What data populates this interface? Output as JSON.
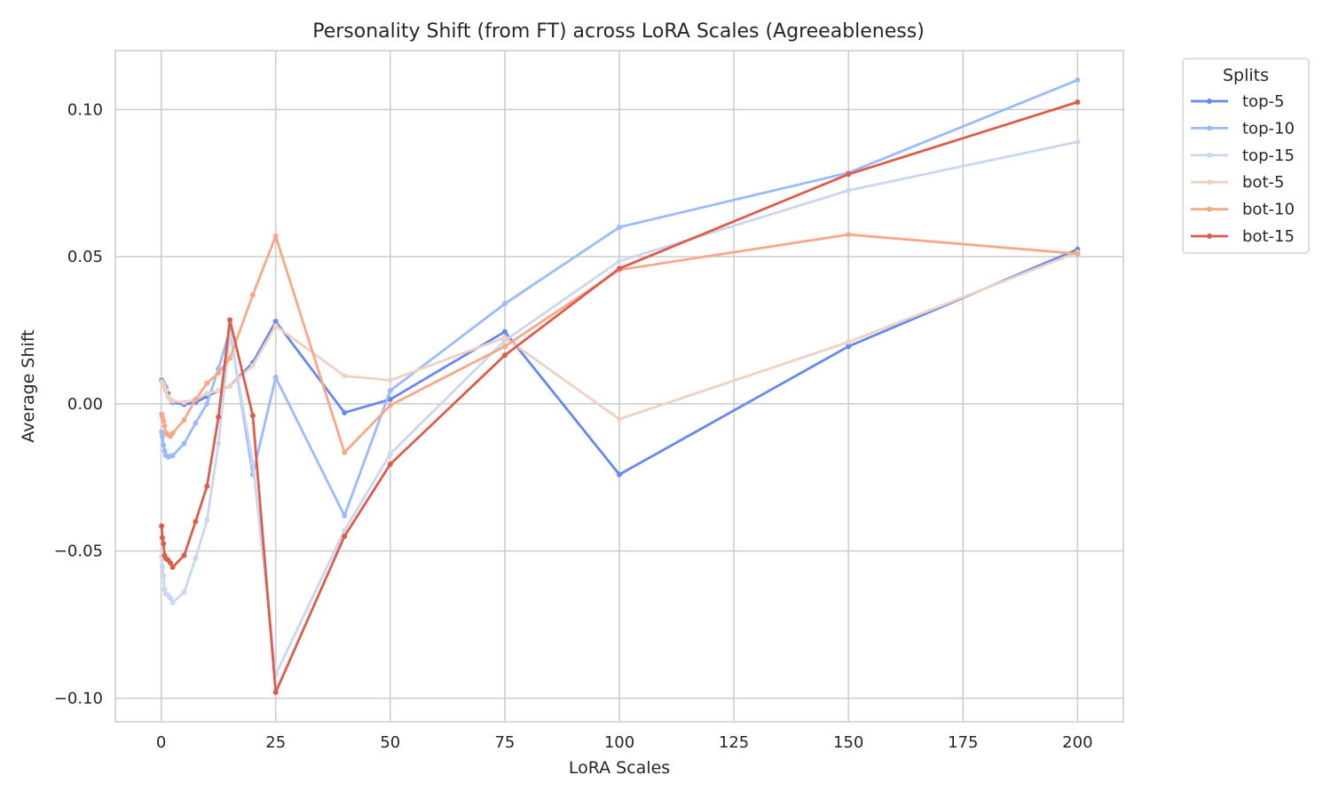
{
  "chart_data": {
    "type": "line",
    "title": "Personality Shift (from FT) across LoRA Scales (Agreeableness)",
    "xlabel": "LoRA Scales",
    "ylabel": "Average Shift",
    "xlim": [
      -10,
      210
    ],
    "ylim": [
      -0.108,
      0.12
    ],
    "xticks": [
      0,
      25,
      50,
      75,
      100,
      125,
      150,
      175,
      200
    ],
    "xtick_labels": [
      "0",
      "25",
      "50",
      "75",
      "100",
      "125",
      "150",
      "175",
      "200"
    ],
    "yticks": [
      -0.1,
      -0.05,
      0.0,
      0.05,
      0.1
    ],
    "ytick_labels": [
      "−0.10",
      "−0.05",
      "0.00",
      "0.05",
      "0.10"
    ],
    "grid": true,
    "legend": {
      "title": "Splits",
      "placement": "outside-top-right"
    },
    "x": [
      0.1,
      0.25,
      0.5,
      0.75,
      1,
      1.5,
      2,
      2.5,
      5,
      7.5,
      10,
      12.5,
      15,
      20,
      25,
      40,
      50,
      75,
      100,
      150,
      200
    ],
    "series": [
      {
        "name": "top-5",
        "color": "#6788ee",
        "values": [
          0.008,
          0.0075,
          0.0068,
          0.0062,
          0.0055,
          0.0035,
          0.0015,
          0.0005,
          -0.0002,
          0.0005,
          0.0025,
          0.0045,
          0.006,
          0.014,
          0.028,
          -0.003,
          0.0015,
          0.0245,
          -0.024,
          0.0195,
          0.0525
        ]
      },
      {
        "name": "top-10",
        "color": "#9abbff",
        "values": [
          -0.0095,
          -0.011,
          -0.014,
          -0.016,
          -0.0175,
          -0.018,
          -0.0178,
          -0.0176,
          -0.0135,
          -0.0065,
          0.0,
          0.012,
          0.025,
          -0.024,
          0.009,
          -0.038,
          0.0045,
          0.034,
          0.06,
          0.0785,
          0.11
        ]
      },
      {
        "name": "top-15",
        "color": "#c9d7f0",
        "values": [
          -0.052,
          -0.0555,
          -0.0585,
          -0.063,
          -0.0645,
          -0.065,
          -0.066,
          -0.0675,
          -0.064,
          -0.0525,
          -0.0395,
          -0.0135,
          0.024,
          -0.02,
          -0.092,
          -0.043,
          -0.017,
          0.0215,
          0.0485,
          0.0725,
          0.089
        ]
      },
      {
        "name": "bot-5",
        "color": "#edd1c2",
        "values": [
          0.0075,
          0.007,
          0.0065,
          0.0055,
          0.0045,
          0.0025,
          0.0015,
          0.001,
          0.0005,
          0.0015,
          0.0035,
          0.0045,
          0.006,
          0.013,
          0.0265,
          0.0095,
          0.008,
          0.0225,
          -0.0052,
          0.021,
          0.0515
        ]
      },
      {
        "name": "bot-10",
        "color": "#f7a889",
        "values": [
          -0.0035,
          -0.0045,
          -0.0058,
          -0.0075,
          -0.0098,
          -0.0105,
          -0.011,
          -0.01,
          -0.0055,
          0.0015,
          0.007,
          0.0105,
          0.0155,
          0.037,
          0.057,
          -0.0165,
          -0.0005,
          0.0195,
          0.0455,
          0.0575,
          0.051
        ]
      },
      {
        "name": "bot-15",
        "color": "#dc5d4a",
        "values": [
          -0.0415,
          -0.0455,
          -0.0475,
          -0.0515,
          -0.0525,
          -0.053,
          -0.054,
          -0.0555,
          -0.0515,
          -0.04,
          -0.028,
          -0.0045,
          0.0285,
          -0.004,
          -0.098,
          -0.045,
          -0.0205,
          0.0165,
          0.046,
          0.078,
          0.1025
        ]
      }
    ]
  }
}
